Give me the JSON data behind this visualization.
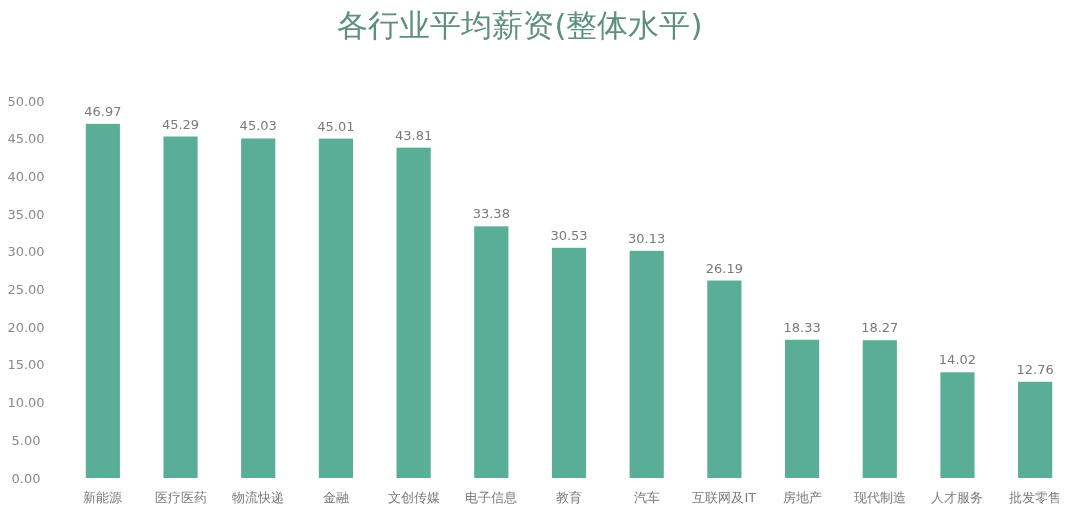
{
  "chart_data": {
    "type": "bar",
    "title": "各行业平均薪资(整体水平)",
    "categories": [
      "新能源",
      "医疗医药",
      "物流快递",
      "金融",
      "文创传媒",
      "电子信息",
      "教育",
      "汽车",
      "互联网及IT",
      "房地产",
      "现代制造",
      "人才服务",
      "批发零售"
    ],
    "values": [
      46.97,
      45.29,
      45.03,
      45.01,
      43.81,
      33.38,
      30.53,
      30.13,
      26.19,
      18.33,
      18.27,
      14.02,
      12.76
    ],
    "color": "#5aae97",
    "ylim": [
      0,
      50
    ],
    "yticks": [
      {
        "value": 0,
        "label": "0.00"
      },
      {
        "value": 5,
        "label": "5.00"
      },
      {
        "value": 10,
        "label": "10.00"
      },
      {
        "value": 15,
        "label": "15.00"
      },
      {
        "value": 20,
        "label": "20.00"
      },
      {
        "value": 25,
        "label": "25.00"
      },
      {
        "value": 30,
        "label": "30.00"
      },
      {
        "value": 35,
        "label": "35.00"
      },
      {
        "value": 40,
        "label": "40.00"
      },
      {
        "value": 45,
        "label": "45.00"
      },
      {
        "value": 50,
        "label": "50.00"
      }
    ],
    "data_labels": true,
    "grid": false
  }
}
